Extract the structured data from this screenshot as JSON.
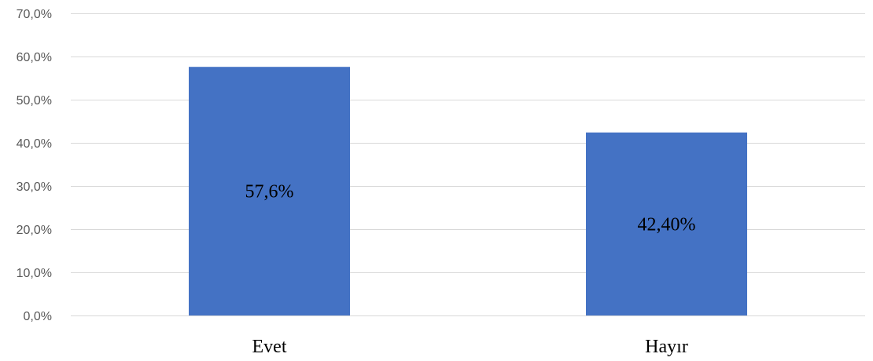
{
  "chart_data": {
    "type": "bar",
    "title": "",
    "xlabel": "",
    "ylabel": "",
    "categories": [
      "Evet",
      "Hayır"
    ],
    "values": [
      57.6,
      42.4
    ],
    "data_labels": [
      "57,6%",
      "42,40%"
    ],
    "ylim": [
      0,
      70
    ],
    "yticks": [
      0,
      10,
      20,
      30,
      40,
      50,
      60,
      70
    ],
    "ytick_labels": [
      "0,0%",
      "10,0%",
      "20,0%",
      "30,0%",
      "40,0%",
      "50,0%",
      "60,0%",
      "70,0%"
    ],
    "grid": true,
    "legend": "none",
    "colors": {
      "bar": "#4472c4",
      "grid": "#d9d9d9",
      "tick_text": "#595959"
    }
  }
}
